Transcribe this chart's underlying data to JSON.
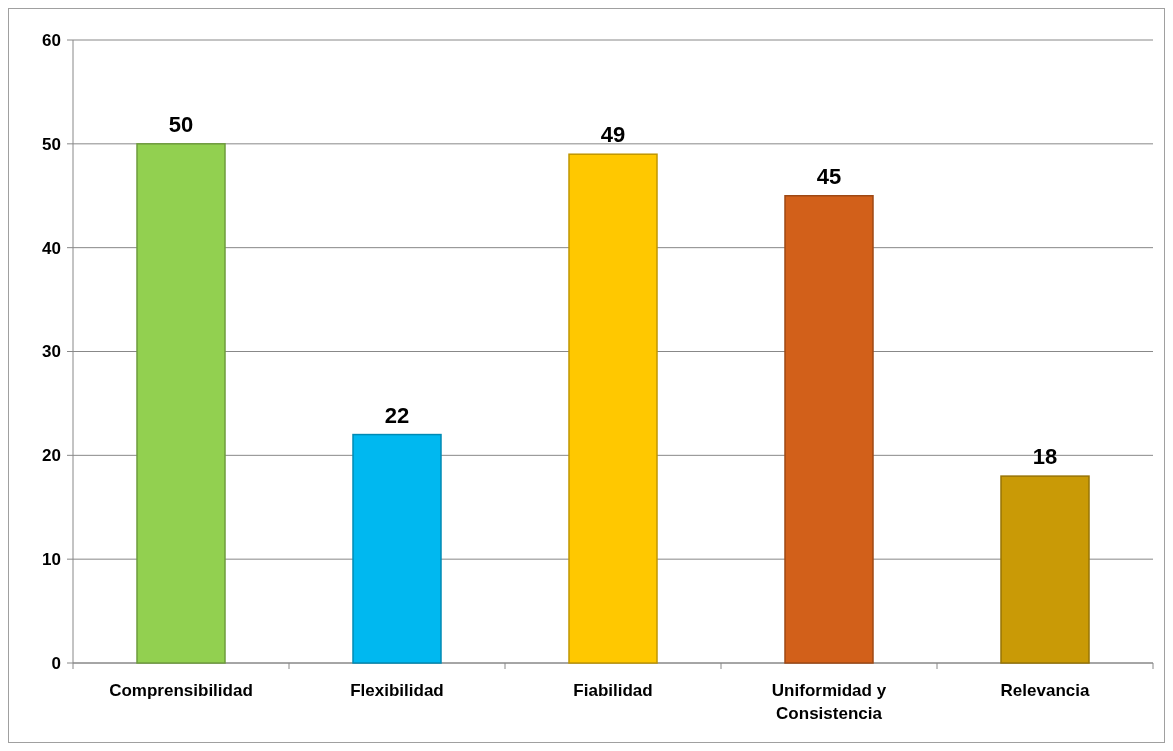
{
  "chart_data": {
    "type": "bar",
    "categories": [
      "Comprensibilidad",
      "Flexibilidad",
      "Fiabilidad",
      "Uniformidad y Consistencia",
      "Relevancia"
    ],
    "values": [
      50,
      22,
      49,
      45,
      18
    ],
    "colors": [
      "#92d050",
      "#00b8f0",
      "#ffc800",
      "#d2601a",
      "#c99a06"
    ],
    "ylim": [
      0,
      60
    ],
    "yticks": [
      0,
      10,
      20,
      30,
      40,
      50,
      60
    ],
    "grid": "y",
    "data_labels": true
  }
}
